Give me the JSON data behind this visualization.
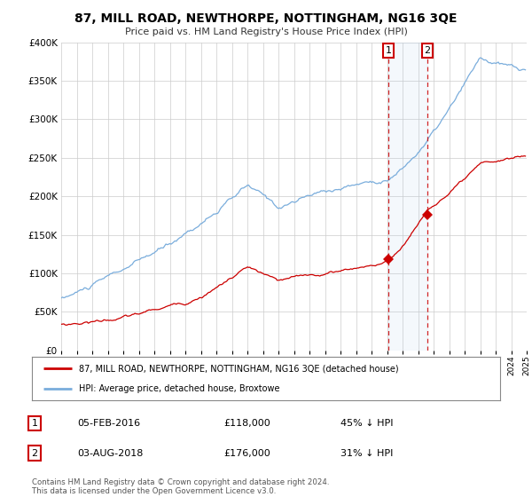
{
  "title": "87, MILL ROAD, NEWTHORPE, NOTTINGHAM, NG16 3QE",
  "subtitle": "Price paid vs. HM Land Registry's House Price Index (HPI)",
  "legend_red": "87, MILL ROAD, NEWTHORPE, NOTTINGHAM, NG16 3QE (detached house)",
  "legend_blue": "HPI: Average price, detached house, Broxtowe",
  "annotation1_label": "1",
  "annotation1_date": "05-FEB-2016",
  "annotation1_price": "£118,000",
  "annotation1_hpi": "45% ↓ HPI",
  "annotation2_label": "2",
  "annotation2_date": "03-AUG-2018",
  "annotation2_price": "£176,000",
  "annotation2_hpi": "31% ↓ HPI",
  "footer": "Contains HM Land Registry data © Crown copyright and database right 2024.\nThis data is licensed under the Open Government Licence v3.0.",
  "red_color": "#cc0000",
  "blue_color": "#7aaddc",
  "background_color": "#ffffff",
  "grid_color": "#cccccc",
  "sale1_x": 2016.09,
  "sale1_y": 118000,
  "sale2_x": 2018.6,
  "sale2_y": 176000,
  "ylim": [
    0,
    400000
  ],
  "xlim_start": 1995,
  "xlim_end": 2025
}
